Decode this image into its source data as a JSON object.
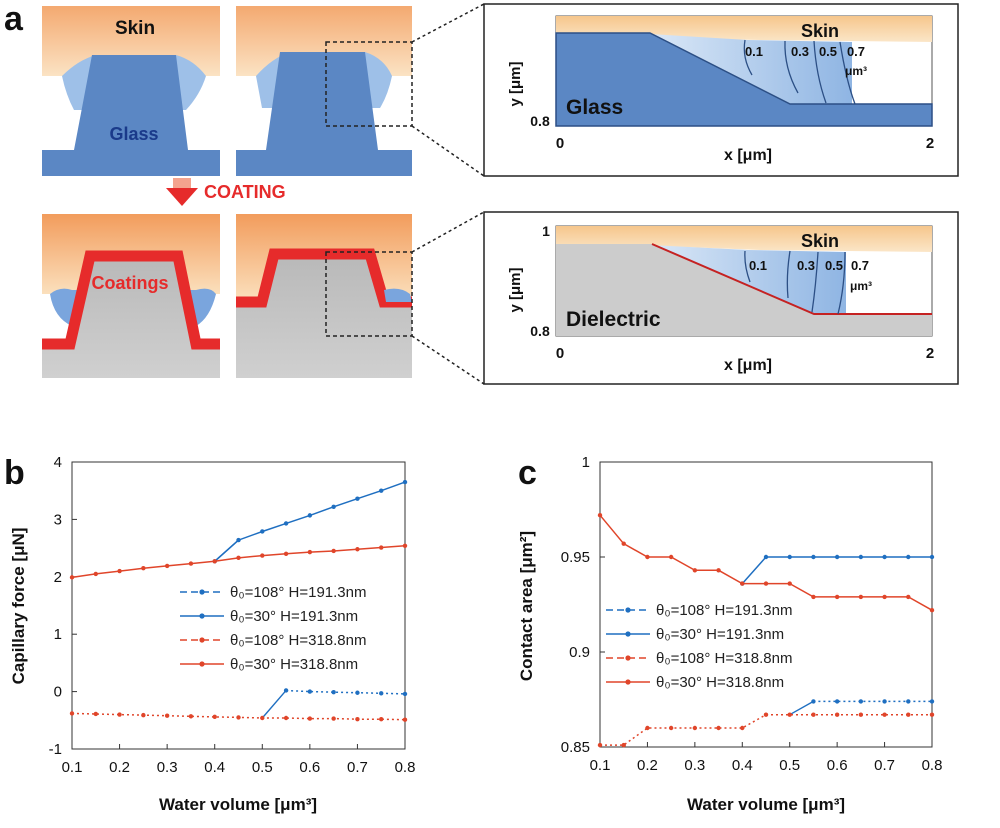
{
  "panel_a": {
    "letter": "a",
    "coating_label": "COATING",
    "top_left": {
      "skin": "Skin",
      "material": "Glass"
    },
    "bottom_left": {
      "material": "Coatings"
    },
    "inset_top": {
      "skin": "Skin",
      "material": "Glass",
      "ylabel": "y [μm]",
      "xlabel": "x [μm]",
      "y_min": "0.8",
      "x_min": "0",
      "x_max": "2",
      "volumes": [
        "0.1",
        "0.3",
        "0.5",
        "0.7"
      ],
      "unit": "μm³"
    },
    "inset_bottom": {
      "skin": "Skin",
      "material": "Dielectric",
      "ylabel": "y [μm]",
      "xlabel": "x [μm]",
      "y_max": "1",
      "y_min": "0.8",
      "x_min": "0",
      "x_max": "2",
      "volumes": [
        "0.1",
        "0.3",
        "0.5",
        "0.7"
      ],
      "unit": "μm³"
    }
  },
  "colors": {
    "blue": "#1f6fc1",
    "red": "#e0452a",
    "skin": "#f7c990",
    "glass": "#5b87c4",
    "dielectric": "#c8c8c8",
    "coating": "#e62b2b"
  },
  "chart_data": [
    {
      "letter": "b",
      "type": "line",
      "xlabel": "Water volume [μm³]",
      "ylabel": "Capillary force [μN]",
      "xlim": [
        0.1,
        0.8
      ],
      "ylim": [
        -1,
        4
      ],
      "xticks": [
        "0.1",
        "0.2",
        "0.3",
        "0.4",
        "0.5",
        "0.6",
        "0.7",
        "0.8"
      ],
      "yticks": [
        "-1",
        "0",
        "1",
        "2",
        "3",
        "4"
      ],
      "series": [
        {
          "name": "θ₀=108°  H=191.3nm",
          "color": "#1f6fc1",
          "dashed": true,
          "x": [
            0.55,
            0.6,
            0.65,
            0.7,
            0.75,
            0.8
          ],
          "y": [
            0.02,
            0.0,
            -0.01,
            -0.02,
            -0.03,
            -0.04
          ]
        },
        {
          "name": "θ₀=30°    H=191.3nm",
          "color": "#1f6fc1",
          "dashed": false,
          "x": [
            0.4,
            0.45,
            0.5,
            0.55,
            0.6,
            0.65,
            0.7,
            0.75,
            0.8
          ],
          "y": [
            2.27,
            2.64,
            2.79,
            2.93,
            3.07,
            3.22,
            3.36,
            3.5,
            3.65
          ]
        },
        {
          "name": "θ₀=108°  H=318.8nm",
          "color": "#e0452a",
          "dashed": true,
          "x": [
            0.1,
            0.15,
            0.2,
            0.25,
            0.3,
            0.35,
            0.4,
            0.45,
            0.5,
            0.55,
            0.6,
            0.65,
            0.7,
            0.75,
            0.8
          ],
          "y": [
            -0.38,
            -0.39,
            -0.4,
            -0.41,
            -0.42,
            -0.43,
            -0.44,
            -0.45,
            -0.46,
            -0.46,
            -0.47,
            -0.47,
            -0.48,
            -0.48,
            -0.49
          ]
        },
        {
          "name": "θ₀=30°    H=318.8nm",
          "color": "#e0452a",
          "dashed": false,
          "x": [
            0.1,
            0.15,
            0.2,
            0.25,
            0.3,
            0.35,
            0.4,
            0.45,
            0.5,
            0.55,
            0.6,
            0.65,
            0.7,
            0.75,
            0.8
          ],
          "y": [
            1.99,
            2.05,
            2.1,
            2.15,
            2.19,
            2.23,
            2.27,
            2.33,
            2.37,
            2.4,
            2.43,
            2.45,
            2.48,
            2.51,
            2.54
          ]
        }
      ],
      "connectors": [
        {
          "color": "#1f6fc1",
          "from": [
            0.4,
            2.27
          ],
          "to": [
            0.45,
            2.64
          ]
        },
        {
          "color": "#1f6fc1",
          "from": [
            0.5,
            -0.46
          ],
          "to": [
            0.55,
            0.02
          ]
        }
      ]
    },
    {
      "letter": "c",
      "type": "line",
      "xlabel": "Water volume [μm³]",
      "ylabel": "Contact area [μm²]",
      "xlim": [
        0.1,
        0.8
      ],
      "ylim": [
        0.85,
        1
      ],
      "xticks": [
        "0.1",
        "0.2",
        "0.3",
        "0.4",
        "0.5",
        "0.6",
        "0.7",
        "0.8"
      ],
      "yticks": [
        "0.85",
        "0.9",
        "0.95",
        "1"
      ],
      "series": [
        {
          "name": "θ₀=108°  H=191.3nm",
          "color": "#1f6fc1",
          "dashed": true,
          "x": [
            0.55,
            0.6,
            0.65,
            0.7,
            0.75,
            0.8
          ],
          "y": [
            0.874,
            0.874,
            0.874,
            0.874,
            0.874,
            0.874
          ]
        },
        {
          "name": "θ₀=30°    H=191.3nm",
          "color": "#1f6fc1",
          "dashed": false,
          "x": [
            0.4,
            0.45,
            0.5,
            0.55,
            0.6,
            0.65,
            0.7,
            0.75,
            0.8
          ],
          "y": [
            0.936,
            0.95,
            0.95,
            0.95,
            0.95,
            0.95,
            0.95,
            0.95,
            0.95
          ]
        },
        {
          "name": "θ₀=108°  H=318.8nm",
          "color": "#e0452a",
          "dashed": true,
          "x": [
            0.1,
            0.15,
            0.2,
            0.25,
            0.3,
            0.35,
            0.4,
            0.45,
            0.5,
            0.55,
            0.6,
            0.65,
            0.7,
            0.75,
            0.8
          ],
          "y": [
            0.851,
            0.851,
            0.86,
            0.86,
            0.86,
            0.86,
            0.86,
            0.867,
            0.867,
            0.867,
            0.867,
            0.867,
            0.867,
            0.867,
            0.867
          ]
        },
        {
          "name": "θ₀=30°    H=318.8nm",
          "color": "#e0452a",
          "dashed": false,
          "x": [
            0.1,
            0.15,
            0.2,
            0.25,
            0.3,
            0.35,
            0.4,
            0.45,
            0.5,
            0.55,
            0.6,
            0.65,
            0.7,
            0.75,
            0.8
          ],
          "y": [
            0.972,
            0.957,
            0.95,
            0.95,
            0.943,
            0.943,
            0.936,
            0.936,
            0.936,
            0.929,
            0.929,
            0.929,
            0.929,
            0.929,
            0.922
          ]
        }
      ],
      "connectors": [
        {
          "color": "#1f6fc1",
          "from": [
            0.5,
            0.867
          ],
          "to": [
            0.55,
            0.874
          ]
        }
      ]
    }
  ]
}
